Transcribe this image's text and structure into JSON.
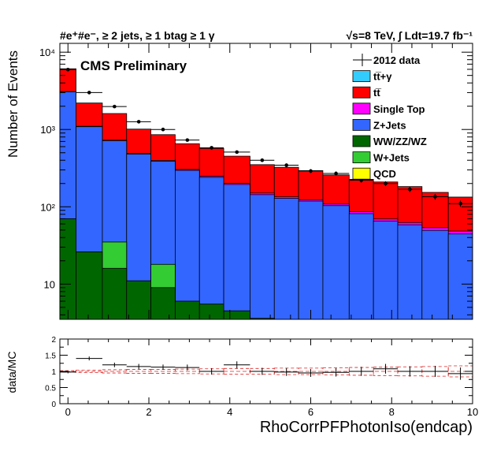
{
  "chart_data": [
    {
      "type": "bar",
      "stacked": true,
      "log_y": true,
      "title_left": "#e⁺#e⁻, ≥ 2 jets, ≥ 1 btag ≥ 1 γ",
      "title_right": "√s=8 TeV, ∫ Ldt=19.7 fb⁻¹",
      "label": "CMS Preliminary",
      "ylabel": "Number of Events",
      "xlim": [
        -0.2,
        10
      ],
      "ylim": [
        3.5,
        13000
      ],
      "x_ticks": [
        "0",
        "2",
        "4",
        "6",
        "8",
        "10"
      ],
      "y_ticks": [
        "10",
        "10²",
        "10³",
        "10⁴"
      ],
      "bin_edges": [
        -0.2,
        0.2,
        0.85,
        1.45,
        2.05,
        2.65,
        3.25,
        3.85,
        4.5,
        5.1,
        5.7,
        6.3,
        6.95,
        7.55,
        8.15,
        8.75,
        9.4,
        10.0
      ],
      "legend_position": "top-right",
      "legend": [
        {
          "label": "2012 data",
          "color": "#000000",
          "marker": "data"
        },
        {
          "label": "tt̅+γ",
          "color": "#33ccff"
        },
        {
          "label": "tt̅",
          "color": "#ff0000"
        },
        {
          "label": "Single Top",
          "color": "#ff00ff"
        },
        {
          "label": "Z+Jets",
          "color": "#3366ff"
        },
        {
          "label": "WW/ZZ/WZ",
          "color": "#006600"
        },
        {
          "label": "W+Jets",
          "color": "#33cc33"
        },
        {
          "label": "QCD",
          "color": "#ffff00"
        }
      ],
      "series": [
        {
          "name": "WW/ZZ/WZ",
          "color": "#006600",
          "values": [
            70,
            26,
            16,
            11,
            9,
            6,
            5.5,
            4.5,
            3.6,
            3.5,
            3.5,
            3.5,
            3.5,
            3.5,
            3.5,
            3.5,
            3.5
          ]
        },
        {
          "name": "W+Jets",
          "color": "#33cc33",
          "values": [
            0,
            0,
            19,
            0,
            9,
            0,
            0,
            0,
            0,
            0,
            0,
            0,
            0,
            0,
            0,
            0,
            0
          ]
        },
        {
          "name": "Z+Jets",
          "color": "#3366ff",
          "values": [
            3000,
            1060,
            680,
            470,
            370,
            290,
            235,
            190,
            140,
            125,
            115,
            100,
            78,
            62,
            55,
            46,
            41
          ]
        },
        {
          "name": "Single Top",
          "color": "#ff00ff",
          "values": [
            30,
            14,
            12,
            10,
            9,
            8,
            8,
            7,
            7,
            6,
            5,
            5,
            5,
            4,
            4,
            4,
            4
          ]
        },
        {
          "name": "tt̅",
          "color": "#ff0000",
          "values": [
            3000,
            1100,
            880,
            520,
            460,
            350,
            320,
            250,
            200,
            190,
            170,
            150,
            140,
            140,
            120,
            100,
            85
          ]
        }
      ],
      "data_points": [
        {
          "x": 0.0,
          "y": 5950
        },
        {
          "x": 0.525,
          "y": 3000
        },
        {
          "x": 1.15,
          "y": 1980
        },
        {
          "x": 1.75,
          "y": 1260
        },
        {
          "x": 2.35,
          "y": 1000
        },
        {
          "x": 2.95,
          "y": 730
        },
        {
          "x": 3.55,
          "y": 580
        },
        {
          "x": 4.175,
          "y": 510
        },
        {
          "x": 4.8,
          "y": 400
        },
        {
          "x": 5.4,
          "y": 345
        },
        {
          "x": 6.0,
          "y": 290
        },
        {
          "x": 6.625,
          "y": 270
        },
        {
          "x": 7.25,
          "y": 220
        },
        {
          "x": 7.85,
          "y": 200
        },
        {
          "x": 8.45,
          "y": 168
        },
        {
          "x": 9.075,
          "y": 135
        },
        {
          "x": 9.7,
          "y": 110
        }
      ]
    },
    {
      "type": "scatter",
      "ylabel": "data/MC",
      "xlabel": "RhoCorrPFPhotonIso(endcap)",
      "xlim": [
        -0.2,
        10
      ],
      "ylim": [
        0,
        2
      ],
      "x_ticks": [
        "0",
        "2",
        "4",
        "6",
        "8",
        "10"
      ],
      "y_ticks": [
        "0",
        "0.5",
        "1",
        "1.5",
        "2"
      ],
      "ratio": [
        0.98,
        1.4,
        1.2,
        1.15,
        1.13,
        1.12,
        1.0,
        1.2,
        1.0,
        0.98,
        0.95,
        0.97,
        1.0,
        1.08,
        1.0,
        1.0,
        0.93
      ],
      "ratio_err": [
        0.02,
        0.04,
        0.05,
        0.06,
        0.06,
        0.07,
        0.08,
        0.09,
        0.09,
        0.1,
        0.1,
        0.11,
        0.12,
        0.13,
        0.14,
        0.15,
        0.17
      ]
    }
  ]
}
